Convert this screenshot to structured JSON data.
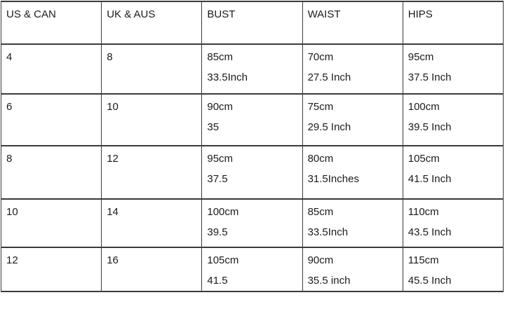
{
  "table": {
    "headers": [
      "US & CAN",
      "UK & AUS",
      "BUST",
      "WAIST",
      "HIPS"
    ],
    "rows": [
      {
        "us_can": "4",
        "uk_aus": "8",
        "bust": [
          "85cm",
          "33.5Inch"
        ],
        "waist": [
          "70cm",
          "27.5 Inch"
        ],
        "hips": [
          "95cm",
          "37.5 Inch"
        ]
      },
      {
        "us_can": "6",
        "uk_aus": "10",
        "bust": [
          "90cm",
          "35"
        ],
        "waist": [
          "75cm",
          "29.5 Inch"
        ],
        "hips": [
          "100cm",
          "39.5 Inch"
        ]
      },
      {
        "us_can": "8",
        "uk_aus": "12",
        "bust": [
          "95cm",
          "37.5"
        ],
        "waist": [
          "80cm",
          "31.5Inches"
        ],
        "hips": [
          "105cm",
          "41.5 Inch"
        ]
      },
      {
        "us_can": "10",
        "uk_aus": "14",
        "bust": [
          "100cm",
          "39.5"
        ],
        "waist": [
          "85cm",
          "33.5Inch"
        ],
        "hips": [
          "110cm",
          "43.5 Inch"
        ]
      },
      {
        "us_can": "12",
        "uk_aus": "16",
        "bust": [
          "105cm",
          "41.5"
        ],
        "waist": [
          "90cm",
          "35.5 inch"
        ],
        "hips": [
          "115cm",
          "45.5 Inch"
        ]
      }
    ]
  },
  "colors": {
    "border": "#3a3a3a",
    "text": "#1b1b1b",
    "background": "#ffffff"
  }
}
